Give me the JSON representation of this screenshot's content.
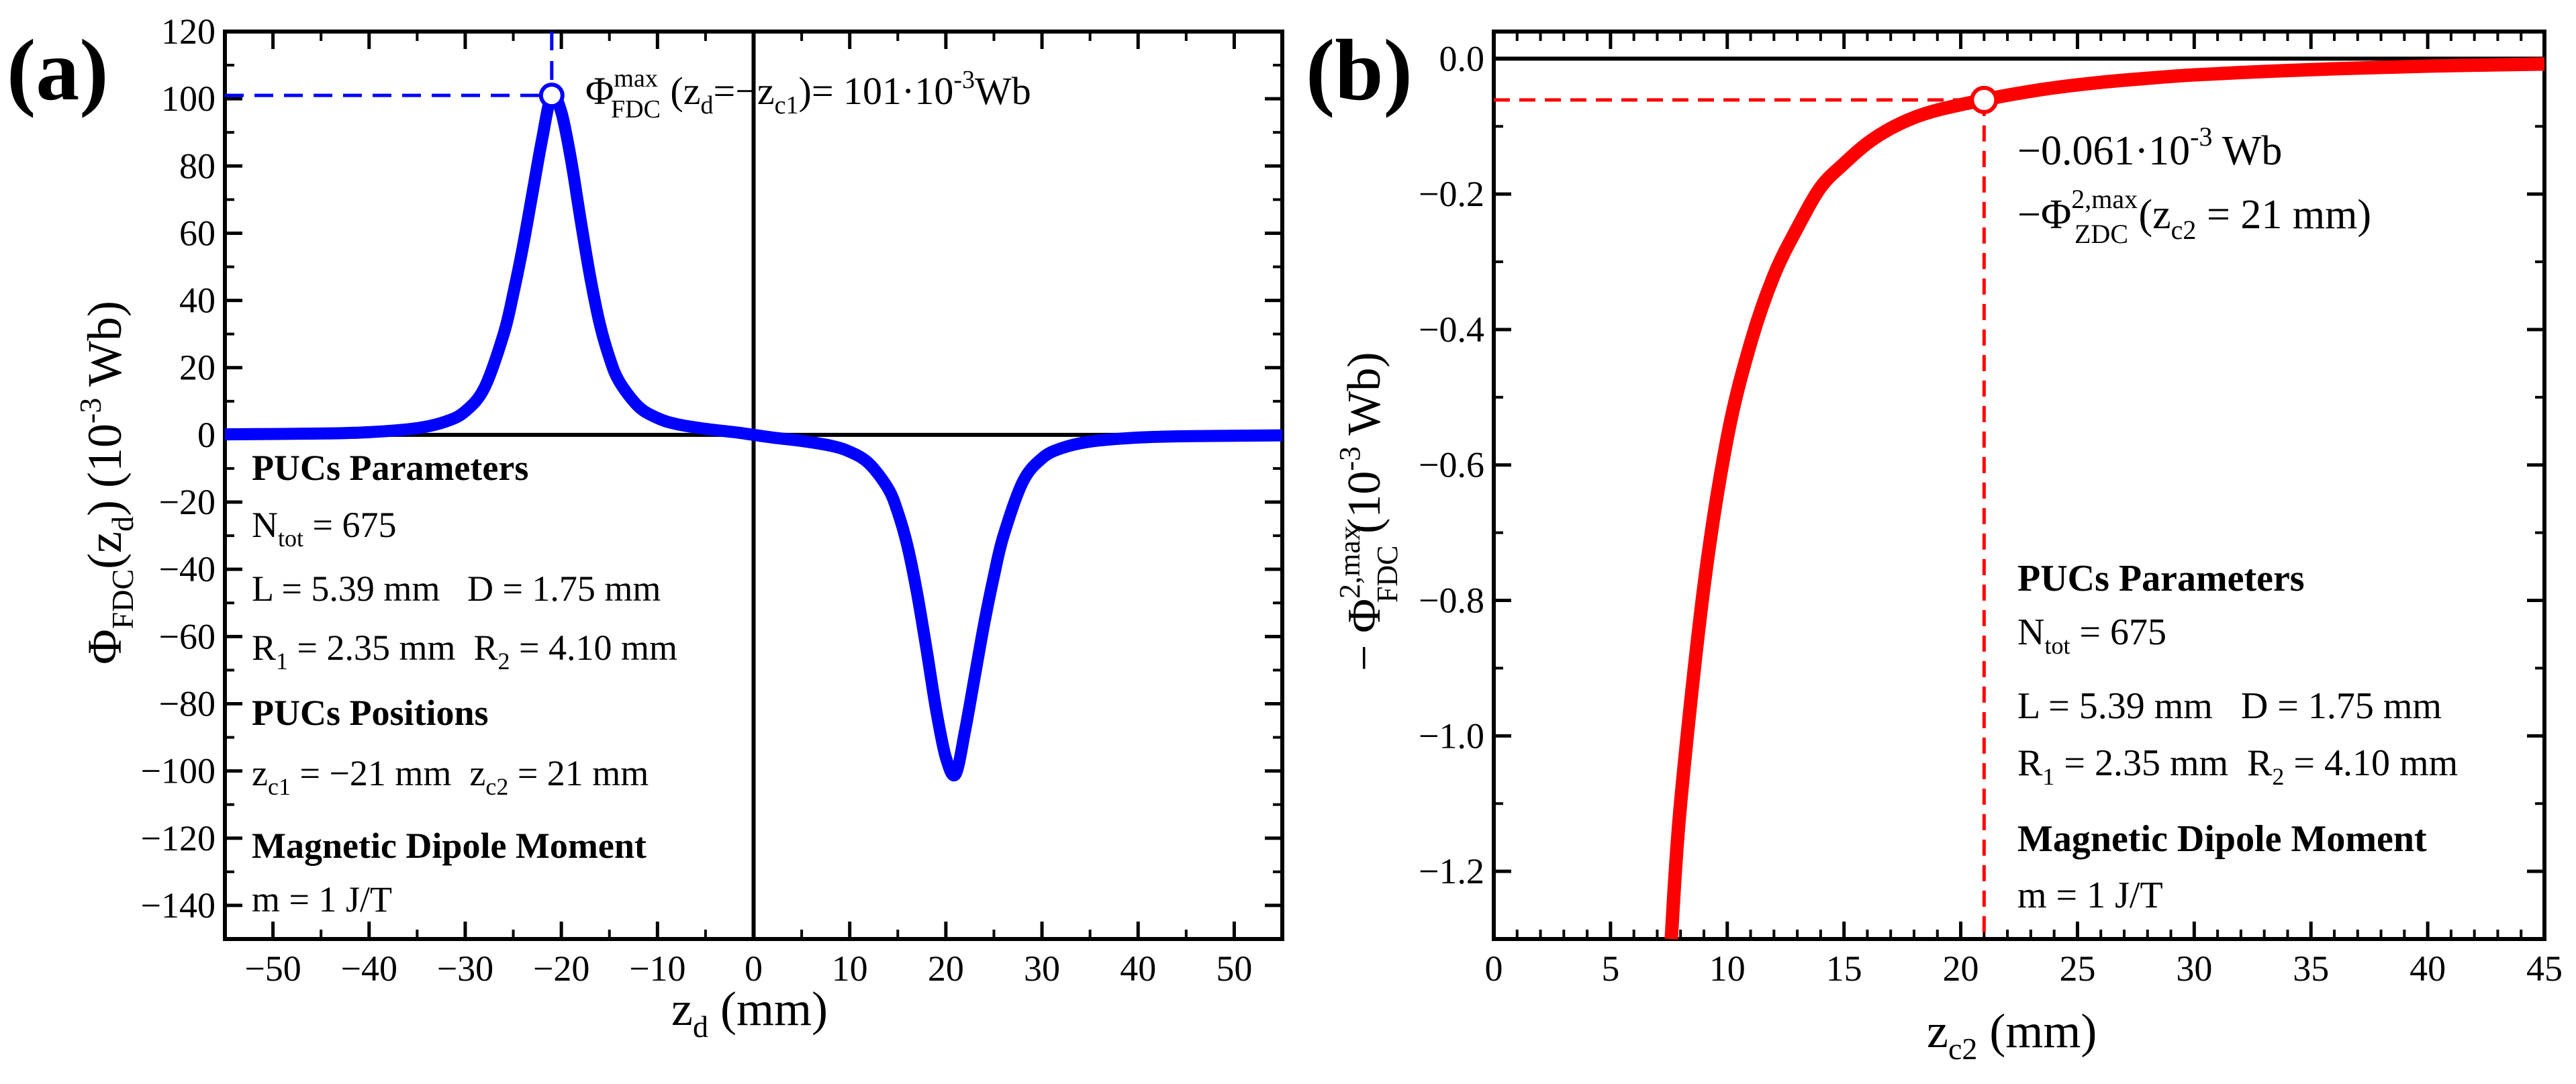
{
  "chart_data": [
    {
      "panel_label": "(a)",
      "type": "line",
      "xlabel": "z",
      "xlabel_sub": "d",
      "xlabel_unit": " (mm)",
      "ylabel_sym": "Φ",
      "ylabel_sub": "FDC",
      "ylabel_arg": "(z",
      "ylabel_arg_sub": "d",
      "ylabel_tail": ") (10",
      "ylabel_exp": "-3",
      "ylabel_unit": " Wb)",
      "xlim": [
        -55,
        55
      ],
      "ylim": [
        -150,
        120
      ],
      "x_ticks": [
        -50,
        -40,
        -30,
        -20,
        -10,
        0,
        10,
        20,
        30,
        40,
        50
      ],
      "x_tick_labels": [
        "−50",
        "−40",
        "−30",
        "−20",
        "−10",
        "0",
        "10",
        "20",
        "30",
        "40",
        "50"
      ],
      "y_ticks": [
        120,
        100,
        80,
        60,
        40,
        20,
        0,
        -20,
        -40,
        -60,
        -80,
        -100,
        -120,
        -140
      ],
      "y_tick_labels": [
        "120",
        "100",
        "80",
        "60",
        "40",
        "20",
        "0",
        "−20",
        "−40",
        "−60",
        "−80",
        "−100",
        "−120",
        "−140"
      ],
      "series": [
        {
          "name": "Φ_FDC(z_d)",
          "color": "#0000ff",
          "x": [
            -55,
            -45,
            -40,
            -35,
            -32,
            -30,
            -28,
            -26,
            -25,
            -24,
            -23,
            -22,
            -21,
            -20,
            -19,
            -18,
            -17,
            -16,
            -15,
            -14,
            -12,
            -10,
            -8,
            -5,
            -2,
            0,
            2,
            5,
            8,
            10,
            12,
            14,
            15,
            16,
            17,
            18,
            19,
            20,
            21,
            22,
            23,
            24,
            25,
            26,
            28,
            30,
            32,
            35,
            40,
            45,
            55
          ],
          "y": [
            0.15,
            0.4,
            0.8,
            2.0,
            4.0,
            7.0,
            14.0,
            30.0,
            42.0,
            56.0,
            72.0,
            88.0,
            101.0,
            96.0,
            82.0,
            64.0,
            47.0,
            33.0,
            23.0,
            16.0,
            8.5,
            5.0,
            3.2,
            1.8,
            0.8,
            0.0,
            -0.8,
            -1.8,
            -3.2,
            -5.0,
            -8.5,
            -16.0,
            -23.0,
            -33.0,
            -47.0,
            -64.0,
            -82.0,
            -96.0,
            -101.0,
            -88.0,
            -72.0,
            -56.0,
            -42.0,
            -30.0,
            -14.0,
            -7.0,
            -4.0,
            -2.0,
            -0.8,
            -0.4,
            -0.15
          ]
        }
      ],
      "marker": {
        "x": -21,
        "y": 101
      },
      "annotation": {
        "sym": "Φ",
        "sup": "max",
        "sub": "FDC",
        "text": " (z",
        "text_sub": "d",
        "text2": "=−z",
        "text2_sub": "c1",
        "text3": ")= 101·10",
        "text3_sup": "-3",
        "text3_tail": "Wb"
      },
      "legend_text": {
        "params_title": "PUCs Parameters",
        "ntot_sym": "N",
        "ntot_sub": "tot",
        "ntot_val": " = 675",
        "ld": "L = 5.39 mm   D = 1.75 mm",
        "r1_sym": "R",
        "r1_sub": "1",
        "r1_val": " = 2.35 mm  ",
        "r2_sym": "R",
        "r2_sub": "2",
        "r2_val": " = 4.10 mm",
        "positions_title": "PUCs Positions",
        "zc1_sym": "z",
        "zc1_sub": "c1",
        "zc1_val": " = −21 mm  ",
        "zc2_sym": "z",
        "zc2_sub": "c2",
        "zc2_val": " = 21 mm",
        "moment_title": "Magnetic Dipole Moment",
        "moment_val": "m = 1 J/T"
      }
    },
    {
      "panel_label": "(b)",
      "type": "line",
      "xlabel": "z",
      "xlabel_sub": "c2",
      "xlabel_unit": " (mm)",
      "ylabel_prefix": "− Φ",
      "ylabel_sup": "2,max",
      "ylabel_sub": "FDC",
      "ylabel_tail": " (10",
      "ylabel_exp": "-3",
      "ylabel_unit": " Wb)",
      "xlim": [
        0,
        45
      ],
      "ylim": [
        -1.3,
        0.04
      ],
      "x_ticks": [
        0,
        5,
        10,
        15,
        20,
        25,
        30,
        35,
        40,
        45
      ],
      "x_tick_labels": [
        "0",
        "5",
        "10",
        "15",
        "20",
        "25",
        "30",
        "35",
        "40",
        "45"
      ],
      "y_ticks": [
        0.0,
        -0.2,
        -0.4,
        -0.6,
        -0.8,
        -1.0,
        -1.2
      ],
      "y_tick_labels": [
        "0.0",
        "−0.2",
        "−0.4",
        "−0.6",
        "−0.8",
        "−1.0",
        "−1.2"
      ],
      "series": [
        {
          "name": "−Φ_FDC^{2,max}(z_c2)",
          "color": "#ff0000",
          "x": [
            7.6,
            8,
            9,
            10,
            11,
            12,
            13,
            14,
            15,
            16,
            17,
            18,
            19,
            20,
            21,
            22,
            24,
            26,
            28,
            30,
            33,
            36,
            40,
            45
          ],
          "y": [
            -1.3,
            -1.1,
            -0.78,
            -0.56,
            -0.42,
            -0.32,
            -0.25,
            -0.19,
            -0.155,
            -0.125,
            -0.103,
            -0.087,
            -0.076,
            -0.068,
            -0.061,
            -0.054,
            -0.043,
            -0.035,
            -0.029,
            -0.024,
            -0.019,
            -0.015,
            -0.011,
            -0.008
          ]
        }
      ],
      "marker": {
        "x": 21,
        "y": -0.061
      },
      "annotation": {
        "line1_pre": "−0.061·10",
        "line1_sup": "-3",
        "line1_tail": " Wb",
        "line2_pre": "−Φ",
        "line2_sup": "2,max",
        "line2_sub": "ZDC",
        "line2_text": " (z",
        "line2_text_sub": "c2",
        "line2_tail": " = 21 mm)"
      },
      "legend_text": {
        "params_title": "PUCs Parameters",
        "ntot_sym": "N",
        "ntot_sub": "tot",
        "ntot_val": " = 675",
        "ld": "L = 5.39 mm   D = 1.75 mm",
        "r1_sym": "R",
        "r1_sub": "1",
        "r1_val": " = 2.35 mm  ",
        "r2_sym": "R",
        "r2_sub": "2",
        "r2_val": " = 4.10 mm",
        "moment_title": "Magnetic Dipole Moment",
        "moment_val": "m = 1 J/T"
      }
    }
  ]
}
